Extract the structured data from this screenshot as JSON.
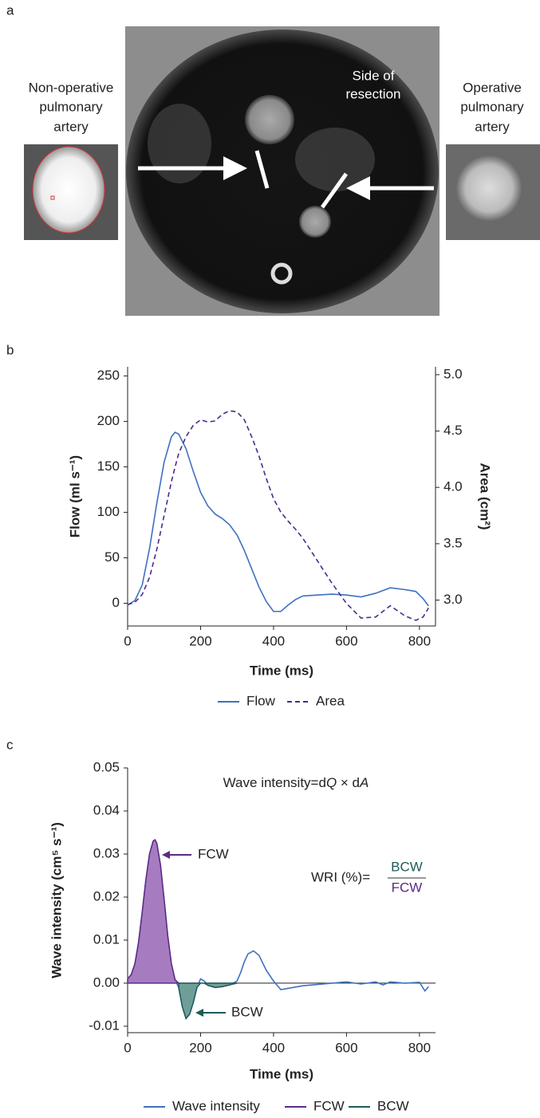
{
  "panel_a": {
    "label": "a",
    "left_label": [
      "Non-operative",
      "pulmonary",
      "artery"
    ],
    "center_label": [
      "Side of",
      "resection"
    ],
    "right_label": [
      "Operative",
      "pulmonary",
      "artery"
    ]
  },
  "chart_data": [
    {
      "type": "line",
      "panel_label": "b",
      "xlabel": "Time (ms)",
      "ylabel": "Flow (ml s⁻¹)",
      "y2label": "Area (cm²)",
      "xlim": [
        0,
        844
      ],
      "xticks": [
        0,
        200,
        400,
        600,
        800
      ],
      "ylim": [
        -25,
        260
      ],
      "yticks": [
        0,
        50,
        100,
        150,
        200,
        250
      ],
      "y2lim": [
        2.77,
        5.07
      ],
      "y2ticks": [
        {
          "value": 3,
          "label": "3.0"
        },
        {
          "value": 3.5,
          "label": "3.5"
        },
        {
          "value": 4,
          "label": "4.0"
        },
        {
          "value": 4.5,
          "label": "4.5"
        },
        {
          "value": 5,
          "label": "5.0"
        }
      ],
      "series": [
        {
          "name": "Flow",
          "color": "#3f70c0",
          "x": [
            0,
            20,
            40,
            60,
            80,
            100,
            120,
            130,
            140,
            160,
            180,
            200,
            220,
            240,
            260,
            280,
            300,
            320,
            340,
            360,
            380,
            400,
            420,
            440,
            460,
            480,
            520,
            560,
            600,
            640,
            680,
            720,
            760,
            790,
            810,
            825
          ],
          "values": [
            -2,
            3,
            20,
            60,
            110,
            155,
            183,
            188,
            186,
            170,
            145,
            122,
            107,
            98,
            93,
            86,
            75,
            58,
            38,
            18,
            2,
            -9,
            -9,
            -2,
            4,
            8,
            9,
            10,
            9,
            7,
            11,
            17,
            15,
            13,
            5,
            -3
          ]
        },
        {
          "name": "Area",
          "color": "#4b2a8c",
          "axis": "y2",
          "dashed": true,
          "x": [
            0,
            20,
            40,
            60,
            80,
            100,
            120,
            130,
            140,
            160,
            180,
            200,
            220,
            240,
            260,
            280,
            300,
            320,
            340,
            360,
            380,
            400,
            420,
            440,
            460,
            480,
            520,
            560,
            600,
            640,
            680,
            720,
            760,
            790,
            810,
            825
          ],
          "values": [
            2.96,
            2.98,
            3.05,
            3.2,
            3.45,
            3.75,
            4.05,
            4.18,
            4.3,
            4.45,
            4.55,
            4.6,
            4.58,
            4.59,
            4.65,
            4.68,
            4.67,
            4.6,
            4.45,
            4.28,
            4.08,
            3.9,
            3.78,
            3.7,
            3.63,
            3.55,
            3.35,
            3.15,
            2.97,
            2.84,
            2.85,
            2.95,
            2.86,
            2.82,
            2.85,
            2.93
          ]
        }
      ]
    },
    {
      "type": "line",
      "panel_label": "c",
      "xlabel": "Time (ms)",
      "ylabel": "Wave intensity (cm⁵ s⁻¹)",
      "xlim": [
        0,
        844
      ],
      "xticks": [
        0,
        200,
        400,
        600,
        800
      ],
      "ylim": [
        -0.0115,
        0.05
      ],
      "yticks": [
        -0.01,
        {
          "value": 0,
          "label": "0.00"
        },
        0.01,
        0.02,
        0.03,
        0.04,
        0.05
      ],
      "zero_line": true,
      "series": [
        {
          "name": "Wave intensity",
          "color": "#3f70c0",
          "x": [
            0,
            10,
            20,
            30,
            40,
            50,
            60,
            70,
            75,
            80,
            90,
            100,
            110,
            120,
            130,
            140,
            150,
            160,
            170,
            180,
            190,
            200,
            210,
            220,
            240,
            260,
            280,
            300,
            310,
            320,
            330,
            345,
            360,
            380,
            400,
            420,
            440,
            480,
            520,
            560,
            600,
            640,
            680,
            700,
            720,
            760,
            800,
            815,
            825
          ],
          "values": [
            0.001,
            0.002,
            0.0045,
            0.0095,
            0.0165,
            0.024,
            0.03,
            0.033,
            0.0333,
            0.0325,
            0.0275,
            0.0195,
            0.011,
            0.0045,
            0.0008,
            -0.001,
            -0.0055,
            -0.0082,
            -0.0072,
            -0.0045,
            -0.001,
            0.001,
            0.0005,
            -0.0005,
            -0.001,
            -0.0008,
            -0.0004,
            0.0005,
            0.0025,
            0.005,
            0.0068,
            0.0075,
            0.0065,
            0.003,
            0.0005,
            -0.0015,
            -0.0012,
            -0.0006,
            -0.0003,
            0,
            0.0003,
            -0.0002,
            0.0003,
            -0.0004,
            0.0003,
            0,
            0.0002,
            -0.0018,
            -0.0008
          ]
        },
        {
          "name": "FCW",
          "color": "#5b2a86",
          "fill": "#a77bbf",
          "x": [
            0,
            10,
            20,
            30,
            40,
            50,
            60,
            70,
            75,
            80,
            90,
            100,
            110,
            120,
            130,
            140
          ],
          "values": [
            0.001,
            0.002,
            0.0045,
            0.0095,
            0.0165,
            0.024,
            0.03,
            0.033,
            0.0333,
            0.0325,
            0.0275,
            0.0195,
            0.011,
            0.0045,
            0.0008,
            0
          ]
        },
        {
          "name": "BCW",
          "color": "#1e5b57",
          "fill": "#6f9e98",
          "x": [
            140,
            150,
            160,
            170,
            180,
            190,
            200,
            210,
            220,
            240,
            260,
            280,
            300
          ],
          "values": [
            -0.001,
            -0.0055,
            -0.0082,
            -0.0072,
            -0.0045,
            -0.001,
            0,
            0,
            -0.0005,
            -0.001,
            -0.0008,
            -0.0004,
            0
          ]
        }
      ],
      "annotations": {
        "formula": [
          "Wave intensity=d",
          "Q",
          " × d",
          "A"
        ],
        "fcw_label": "FCW",
        "bcw_label": "BCW",
        "wri": "WRI (%)=",
        "wri_numerator": "BCW",
        "wri_denominator": "FCW"
      }
    }
  ]
}
